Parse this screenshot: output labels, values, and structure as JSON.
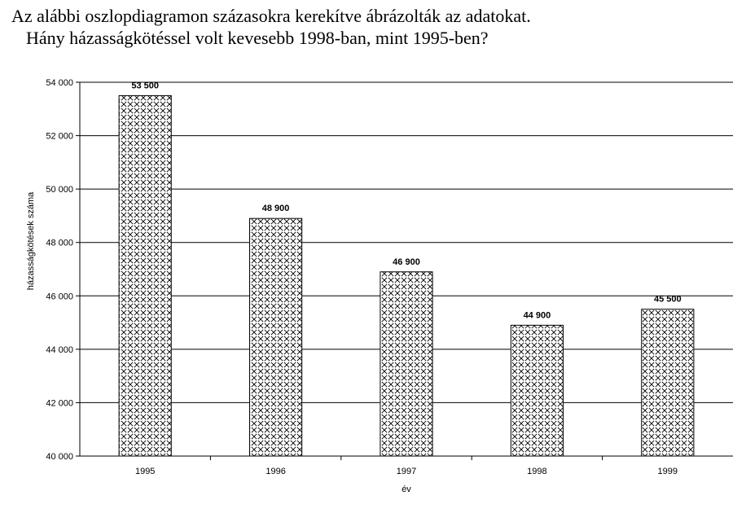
{
  "question": {
    "line1": "Az alábbi oszlopdiagramon százasokra kerekítve ábrázolták az adatokat.",
    "line2": "Hány házasságkötéssel volt kevesebb 1998-ban, mint 1995-ben?"
  },
  "chart_data": {
    "type": "bar",
    "title": "",
    "xlabel": "év",
    "ylabel": "házasságkötések száma",
    "categories": [
      "1995",
      "1996",
      "1997",
      "1998",
      "1999"
    ],
    "values": [
      53500,
      48900,
      46900,
      44900,
      45500
    ],
    "value_labels": [
      "53 500",
      "48 900",
      "46 900",
      "44 900",
      "45 500"
    ],
    "ylim": [
      40000,
      54000
    ],
    "yticks": [
      40000,
      42000,
      44000,
      46000,
      48000,
      50000,
      52000,
      54000
    ],
    "ytick_labels": [
      "40 000",
      "42 000",
      "44 000",
      "46 000",
      "48 000",
      "50 000",
      "52 000",
      "54 000"
    ],
    "grid": true,
    "legend": "none",
    "bar_fill": "crosshatch",
    "colors": {
      "bar_stroke": "#000000",
      "grid": "#000000"
    }
  }
}
